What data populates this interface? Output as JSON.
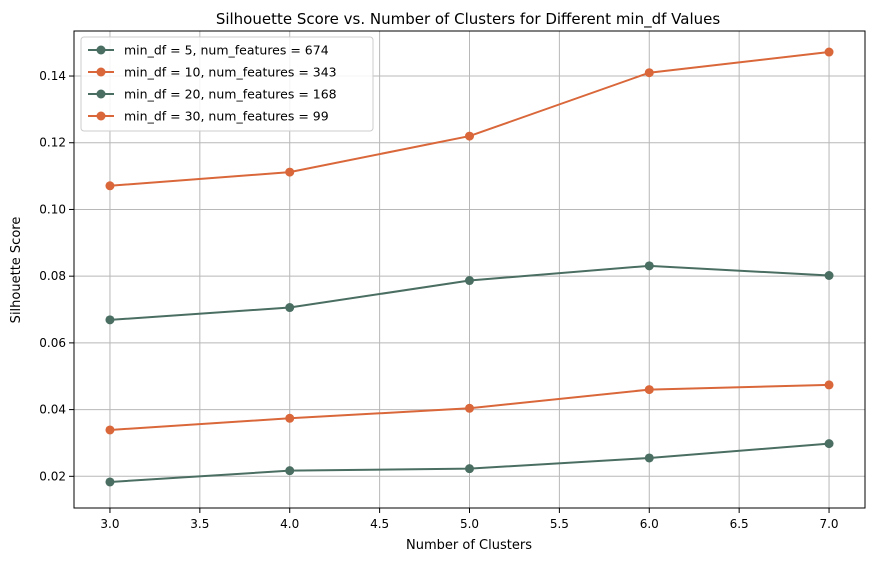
{
  "chart_data": {
    "type": "line",
    "title": "Silhouette Score vs. Number of Clusters for Different min_df Values",
    "xlabel": "Number of Clusters",
    "ylabel": "Silhouette Score",
    "x": [
      3.0,
      4.0,
      5.0,
      6.0,
      7.0
    ],
    "xlim": [
      2.8,
      7.2
    ],
    "ylim": [
      0.0105,
      0.1535
    ],
    "xticks": [
      3.0,
      3.5,
      4.0,
      4.5,
      5.0,
      5.5,
      6.0,
      6.5,
      7.0
    ],
    "xtick_labels": [
      "3.0",
      "3.5",
      "4.0",
      "4.5",
      "5.0",
      "5.5",
      "6.0",
      "6.5",
      "7.0"
    ],
    "yticks": [
      0.02,
      0.04,
      0.06,
      0.08,
      0.1,
      0.12,
      0.14
    ],
    "ytick_labels": [
      "0.02",
      "0.04",
      "0.06",
      "0.08",
      "0.10",
      "0.12",
      "0.14"
    ],
    "grid": true,
    "legend_position": "top-left",
    "series": [
      {
        "name": "min_df = 5, num_features = 674",
        "color": "#4a6e62",
        "values": [
          0.0183,
          0.0217,
          0.0223,
          0.0255,
          0.0298
        ]
      },
      {
        "name": "min_df = 10, num_features = 343",
        "color": "#d9673a",
        "values": [
          0.0339,
          0.0374,
          0.0404,
          0.046,
          0.0474
        ]
      },
      {
        "name": "min_df = 20, num_features = 168",
        "color": "#4a6e62",
        "values": [
          0.0669,
          0.0706,
          0.0787,
          0.0831,
          0.0802
        ]
      },
      {
        "name": "min_df = 30, num_features = 99",
        "color": "#d9673a",
        "values": [
          0.1071,
          0.1112,
          0.122,
          0.141,
          0.1472
        ]
      }
    ]
  }
}
